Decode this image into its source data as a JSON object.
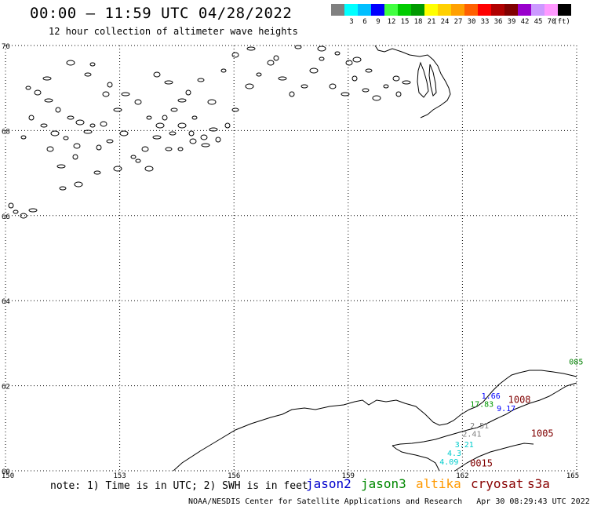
{
  "title": "00:00 – 11:59 UTC 04/28/2022",
  "subtitle": "12 hour collection of altimeter wave heights",
  "color_scale": {
    "unit": "(ft)",
    "levels": [
      {
        "label": "",
        "color": "#808080"
      },
      {
        "label": "3",
        "color": "#00ffff"
      },
      {
        "label": "6",
        "color": "#00bfff"
      },
      {
        "label": "9",
        "color": "#0000ff"
      },
      {
        "label": "12",
        "color": "#40ff40"
      },
      {
        "label": "15",
        "color": "#00cc00"
      },
      {
        "label": "18",
        "color": "#009900"
      },
      {
        "label": "21",
        "color": "#ffff00"
      },
      {
        "label": "24",
        "color": "#ffd000"
      },
      {
        "label": "27",
        "color": "#ffa000"
      },
      {
        "label": "30",
        "color": "#ff6000"
      },
      {
        "label": "33",
        "color": "#ff0000"
      },
      {
        "label": "36",
        "color": "#b00000"
      },
      {
        "label": "39",
        "color": "#800000"
      },
      {
        "label": "42",
        "color": "#9900cc"
      },
      {
        "label": "45",
        "color": "#cc99ff"
      },
      {
        "label": "70",
        "color": "#ff99ff"
      },
      {
        "label": "",
        "color": "#000000"
      }
    ]
  },
  "axes": {
    "lon_ticks": [
      "150",
      "153",
      "156",
      "159",
      "162",
      "165"
    ],
    "lat_ticks": [
      "70",
      "68",
      "66",
      "64",
      "62",
      "60"
    ]
  },
  "labels": [
    {
      "text": "085",
      "color": "#008000",
      "lon": 164.8,
      "lat": 62.5
    },
    {
      "text": "1.66",
      "color": "#0000ff",
      "lon": 162.5,
      "lat": 61.7
    },
    {
      "text": "1008",
      "color": "#800000",
      "lon": 163.2,
      "lat": 61.6
    },
    {
      "text": "17.83",
      "color": "#009900",
      "lon": 162.2,
      "lat": 61.5
    },
    {
      "text": "9.17",
      "color": "#0000ff",
      "lon": 162.9,
      "lat": 61.4
    },
    {
      "text": "2.51",
      "color": "#808080",
      "lon": 162.2,
      "lat": 61.0
    },
    {
      "text": "2.41",
      "color": "#808080",
      "lon": 162.0,
      "lat": 60.8
    },
    {
      "text": "1005",
      "color": "#800000",
      "lon": 163.8,
      "lat": 60.8
    },
    {
      "text": "3.21",
      "color": "#00cccc",
      "lon": 161.8,
      "lat": 60.55
    },
    {
      "text": "4.3",
      "color": "#00cccc",
      "lon": 161.6,
      "lat": 60.35
    },
    {
      "text": "4.09",
      "color": "#00cccc",
      "lon": 161.4,
      "lat": 60.15
    },
    {
      "text": "0015",
      "color": "#800000",
      "lon": 162.2,
      "lat": 60.1
    }
  ],
  "note": "note: 1) Time is in UTC; 2) SWH is in feet",
  "legend": [
    {
      "name": "jason2",
      "color": "#0000cc"
    },
    {
      "name": "jason3",
      "color": "#008800"
    },
    {
      "name": "altika",
      "color": "#ff9900"
    },
    {
      "name": "cryosat",
      "color": "#880000"
    },
    {
      "name": "s3a",
      "color": "#880000"
    }
  ],
  "credit": "NOAA/NESDIS Center for Satellite Applications and Research   Apr 30 08:29:43 UTC 2022"
}
